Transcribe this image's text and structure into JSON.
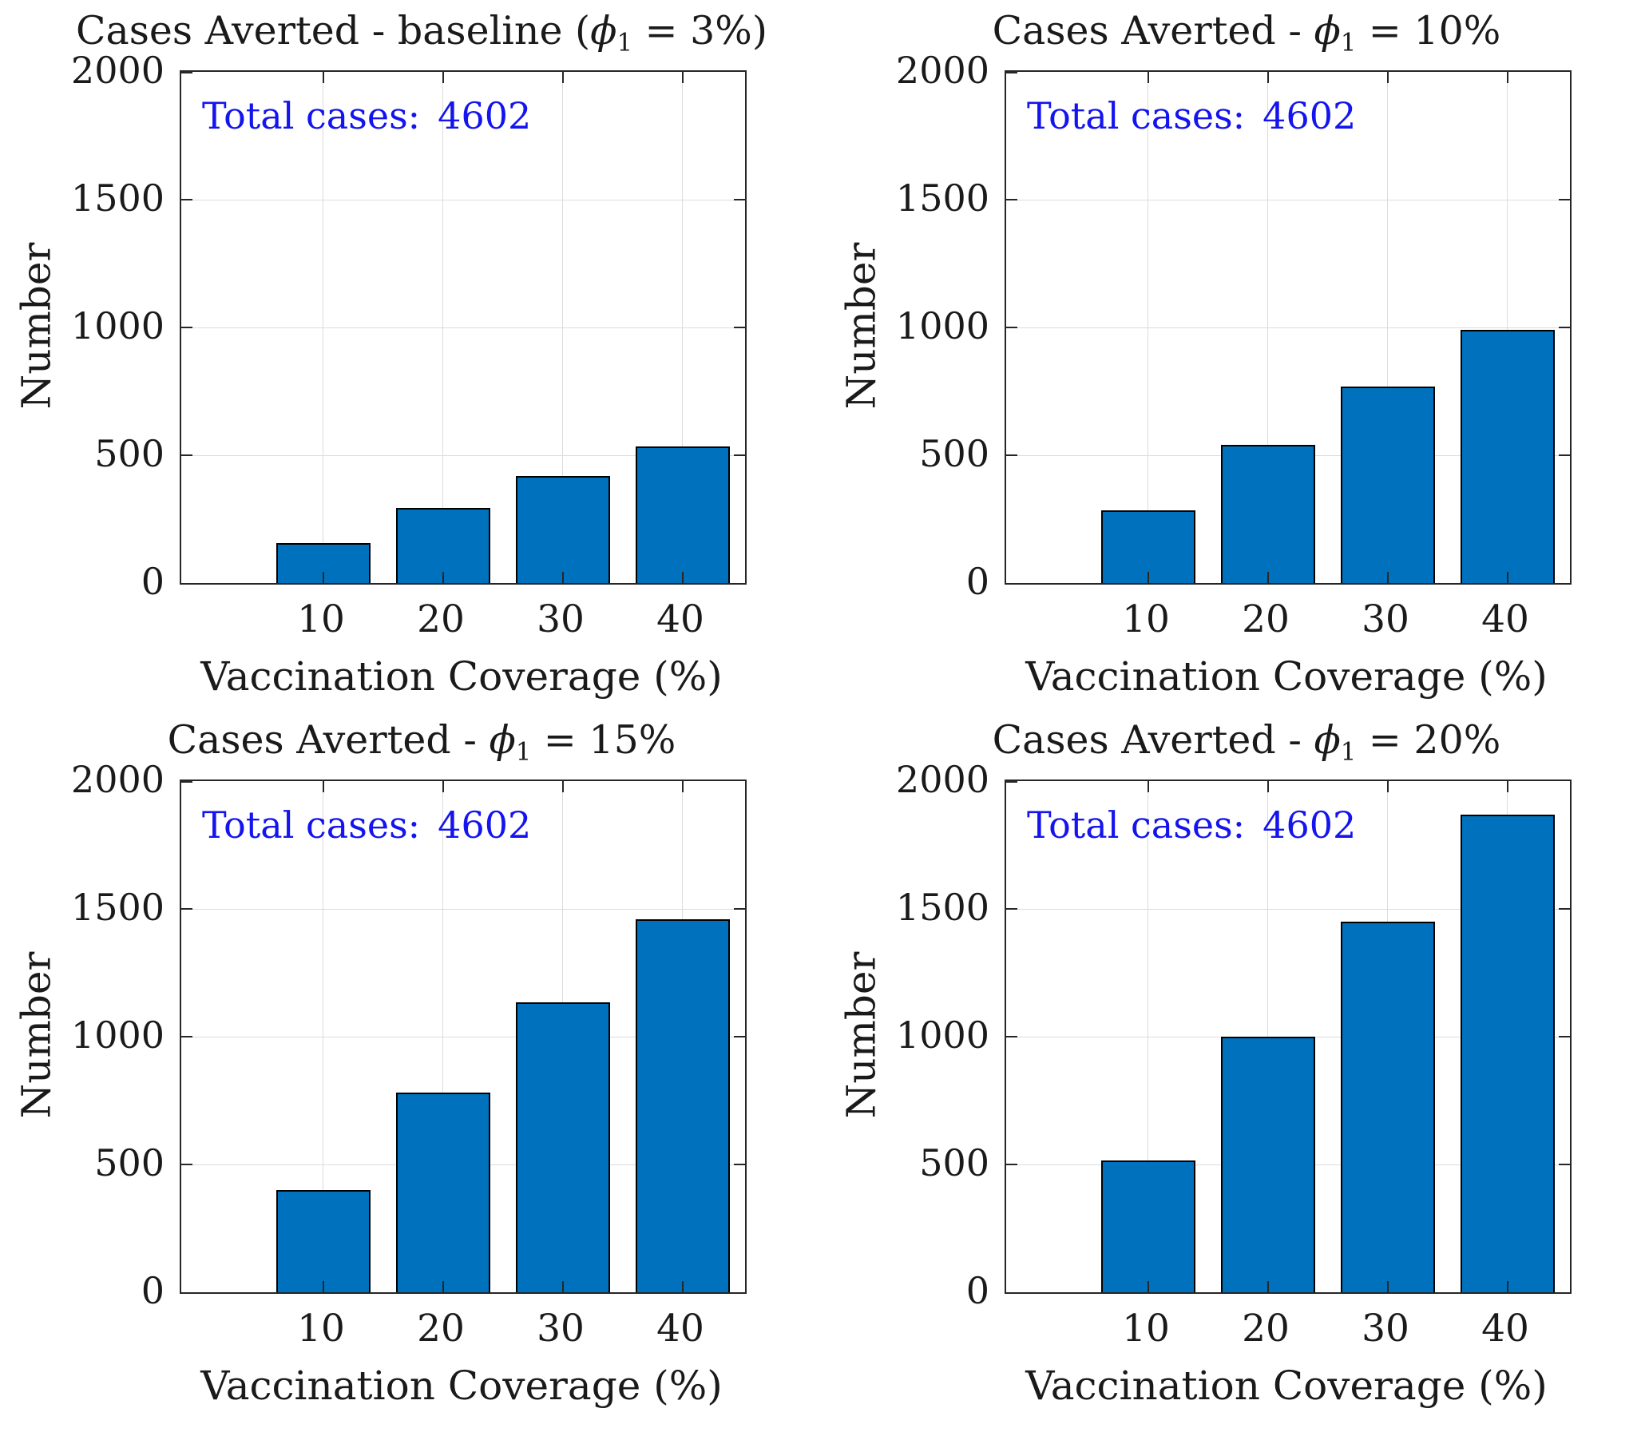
{
  "figure": {
    "background": "#ffffff",
    "rows": 2,
    "cols": 2
  },
  "shared": {
    "ylabel": "Number",
    "xlabel": "Vaccination Coverage (%)",
    "annotation_label": "Total cases:",
    "annotation_value": "4602",
    "y_ticks": [
      "2000",
      "1500",
      "1000",
      "500",
      "0"
    ],
    "x_ticks": [
      "10",
      "20",
      "30",
      "40"
    ],
    "colors": {
      "bar_fill": "#0072BD",
      "bar_edge": "#000000",
      "annotation_blue": "#1414EE",
      "grid": "#dcdcdc",
      "axis": "#262626",
      "text": "#1a1a1a"
    }
  },
  "chart_data": [
    {
      "type": "bar",
      "title": "Cases Averted - baseline (ϕ₁ = 3%)",
      "title_parts": {
        "prefix": "Cases Averted - baseline (",
        "phi": "ϕ",
        "sub": "1",
        "suffix": " = 3%)"
      },
      "categories": [
        10,
        20,
        30,
        40
      ],
      "values": [
        155,
        295,
        420,
        535
      ],
      "xlabel": "Vaccination Coverage (%)",
      "ylabel": "Number",
      "ylim": [
        0,
        2000
      ],
      "yticks": [
        0,
        500,
        1000,
        1500,
        2000
      ],
      "annotation": "Total cases: 4602",
      "grid": true,
      "bar_color": "#0072BD"
    },
    {
      "type": "bar",
      "title": "Cases Averted - ϕ₁ = 10%",
      "title_parts": {
        "prefix": "Cases Averted - ",
        "phi": "ϕ",
        "sub": "1",
        "suffix": " = 10%"
      },
      "categories": [
        10,
        20,
        30,
        40
      ],
      "values": [
        285,
        540,
        770,
        990
      ],
      "xlabel": "Vaccination Coverage (%)",
      "ylabel": "Number",
      "ylim": [
        0,
        2000
      ],
      "yticks": [
        0,
        500,
        1000,
        1500,
        2000
      ],
      "annotation": "Total cases: 4602",
      "grid": true,
      "bar_color": "#0072BD"
    },
    {
      "type": "bar",
      "title": "Cases Averted - ϕ₁ = 15%",
      "title_parts": {
        "prefix": "Cases Averted - ",
        "phi": "ϕ",
        "sub": "1",
        "suffix": " = 15%"
      },
      "categories": [
        10,
        20,
        30,
        40
      ],
      "values": [
        400,
        780,
        1135,
        1460
      ],
      "xlabel": "Vaccination Coverage (%)",
      "ylabel": "Number",
      "ylim": [
        0,
        2000
      ],
      "yticks": [
        0,
        500,
        1000,
        1500,
        2000
      ],
      "annotation": "Total cases: 4602",
      "grid": true,
      "bar_color": "#0072BD"
    },
    {
      "type": "bar",
      "title": "Cases Averted - ϕ₁ = 20%",
      "title_parts": {
        "prefix": "Cases Averted - ",
        "phi": "ϕ",
        "sub": "1",
        "suffix": " = 20%"
      },
      "categories": [
        10,
        20,
        30,
        40
      ],
      "values": [
        515,
        1000,
        1450,
        1870
      ],
      "xlabel": "Vaccination Coverage (%)",
      "ylabel": "Number",
      "ylim": [
        0,
        2000
      ],
      "yticks": [
        0,
        500,
        1000,
        1500,
        2000
      ],
      "annotation": "Total cases: 4602",
      "grid": true,
      "bar_color": "#0072BD"
    }
  ]
}
